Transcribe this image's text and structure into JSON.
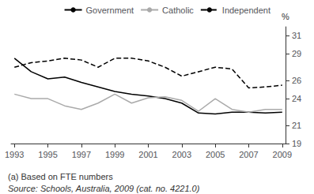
{
  "chart_data": {
    "type": "line",
    "x": [
      1993,
      1994,
      1995,
      1996,
      1997,
      1998,
      1999,
      2000,
      2001,
      2002,
      2003,
      2004,
      2005,
      2006,
      2007,
      2008,
      2009
    ],
    "series": [
      {
        "name": "Government",
        "color": "#000000",
        "line_style": "solid",
        "values": [
          28.5,
          27.0,
          26.2,
          26.4,
          25.8,
          25.3,
          24.8,
          24.5,
          24.3,
          24.0,
          23.5,
          22.4,
          22.3,
          22.5,
          22.5,
          22.4,
          22.5
        ]
      },
      {
        "name": "Catholic",
        "color": "#aaaaaa",
        "line_style": "solid",
        "values": [
          24.5,
          24.0,
          24.0,
          23.2,
          22.8,
          23.5,
          24.5,
          23.5,
          24.1,
          24.2,
          23.8,
          22.6,
          24.0,
          22.8,
          22.5,
          22.8,
          22.8
        ]
      },
      {
        "name": "Independent",
        "color": "#000000",
        "line_style": "dashed",
        "values": [
          27.5,
          28.0,
          28.2,
          28.5,
          28.3,
          27.5,
          28.5,
          28.5,
          28.2,
          27.5,
          26.5,
          27.0,
          27.5,
          27.3,
          25.2,
          25.3,
          25.5
        ]
      }
    ],
    "ylabel": "%",
    "xlim": [
      1992.8,
      2009.2
    ],
    "xticks": [
      1993,
      1995,
      1997,
      1999,
      2001,
      2003,
      2005,
      2007,
      2009
    ],
    "ylim": [
      19,
      32
    ],
    "yticks": [
      19,
      21,
      24,
      26,
      29,
      31
    ],
    "annotations": [
      "(a) Based on FTE numbers",
      "Source: Schools, Australia, 2009 (cat. no. 4221.0)"
    ],
    "legend": "upper right",
    "grid": false
  }
}
